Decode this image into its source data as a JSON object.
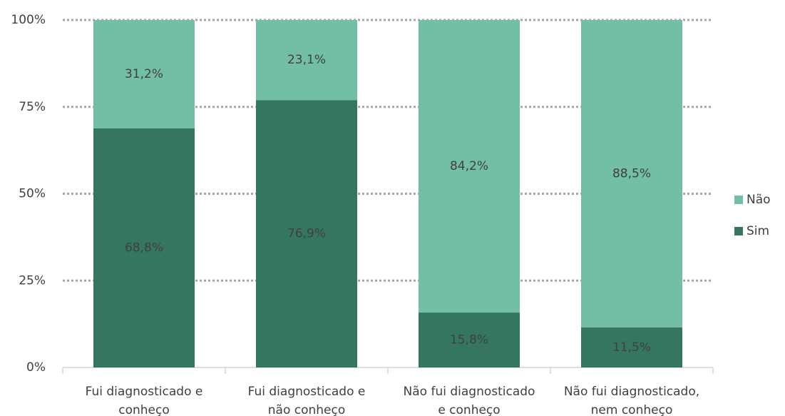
{
  "chart_data": {
    "type": "stacked_bar",
    "categories": [
      [
        "Fui diagnosticado e",
        "conheço"
      ],
      [
        "Fui diagnosticado e",
        "não conheço"
      ],
      [
        "Não fui diagnosticado",
        "e conheço"
      ],
      [
        "Não fui diagnosticado,",
        "nem conheço"
      ]
    ],
    "series": [
      {
        "name": "Sim",
        "color": "#35765f",
        "values": [
          68.8,
          76.9,
          15.8,
          11.5
        ],
        "value_labels": [
          "68,8%",
          "76,9%",
          "15,8%",
          "11,5%"
        ]
      },
      {
        "name": "Não",
        "color": "#73bfa3",
        "values": [
          31.2,
          23.1,
          84.2,
          88.5
        ],
        "value_labels": [
          "31,2%",
          "23,1%",
          "84,2%",
          "88,5%"
        ]
      }
    ],
    "ylim": [
      0,
      100
    ],
    "yticks": [
      {
        "value": 0,
        "label": "0%"
      },
      {
        "value": 25,
        "label": "25%"
      },
      {
        "value": 50,
        "label": "50%"
      },
      {
        "value": 75,
        "label": "75%"
      },
      {
        "value": 100,
        "label": "100%"
      }
    ],
    "grid": true,
    "legend": "right"
  }
}
